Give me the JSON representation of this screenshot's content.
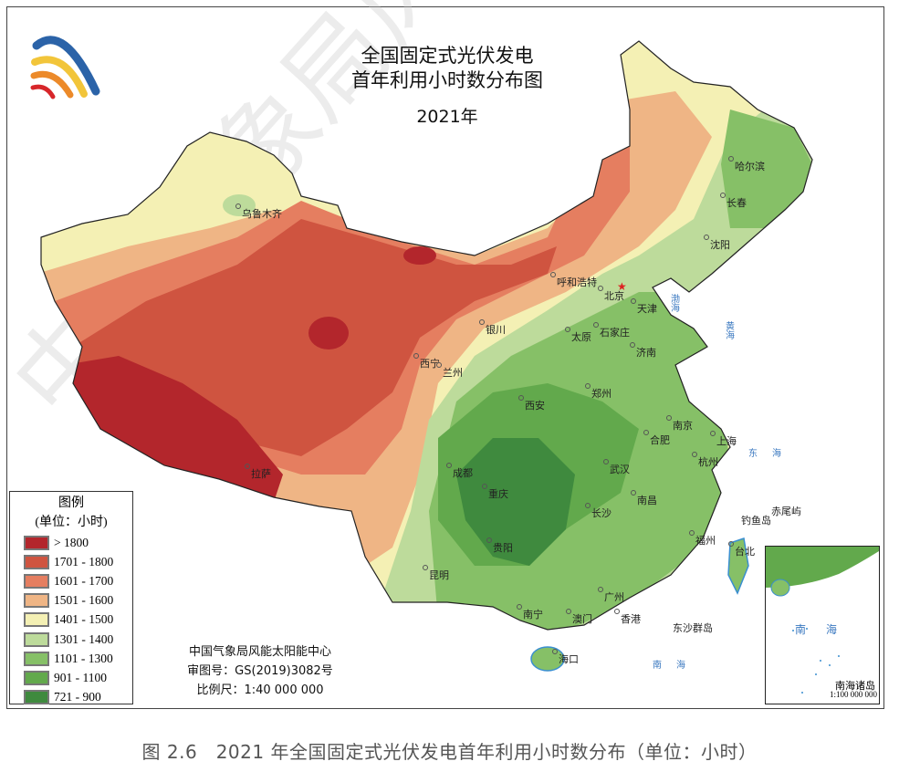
{
  "map": {
    "title_line1": "全国固定式光伏发电",
    "title_line2": "首年利用小时数分布图",
    "year": "2021年",
    "watermark": "中国气象局风能",
    "legend": {
      "title": "图例",
      "unit": "(单位：小时)",
      "items": [
        {
          "label": "> 1800",
          "color": "#b3262c"
        },
        {
          "label": "1701 - 1800",
          "color": "#cf5440"
        },
        {
          "label": "1601 - 1700",
          "color": "#e57e60"
        },
        {
          "label": "1501 - 1600",
          "color": "#efb585"
        },
        {
          "label": "1401 - 1500",
          "color": "#f4f0b4"
        },
        {
          "label": "1301 - 1400",
          "color": "#bddb9b"
        },
        {
          "label": "1101 - 1300",
          "color": "#86c067"
        },
        {
          "label": "901 - 1100",
          "color": "#62a94c"
        },
        {
          "label": "721 - 900",
          "color": "#3f8a3e"
        }
      ]
    },
    "credits": {
      "org": "中国气象局风能太阳能中心",
      "approval": "审图号：GS(2019)3082号",
      "scale": "比例尺：1:40 000 000"
    },
    "cities": [
      "乌鲁木齐",
      "哈尔滨",
      "长春",
      "沈阳",
      "呼和浩特",
      "北京",
      "天津",
      "石家庄",
      "太原",
      "济南",
      "银川",
      "西宁",
      "兰州",
      "郑州",
      "西安",
      "南京",
      "合肥",
      "上海",
      "杭州",
      "武汉",
      "成都",
      "重庆",
      "南昌",
      "长沙",
      "拉萨",
      "贵阳",
      "福州",
      "台北",
      "昆明",
      "南宁",
      "广州",
      "澳门",
      "香港",
      "海口"
    ],
    "seas": {
      "bohai": "渤海",
      "huanghai": "黄海",
      "donghai": "东海",
      "nanhai": "南海",
      "diaoyu": "钓鱼岛",
      "chiwei": "赤尾屿",
      "dongsha": "东沙群岛"
    },
    "inset": {
      "sea": "南海",
      "title": "南海诸岛",
      "scale": "1:100 000 000"
    }
  },
  "caption": "图 2.6　2021 年全国固定式光伏发电首年利用小时数分布（单位：小时）"
}
